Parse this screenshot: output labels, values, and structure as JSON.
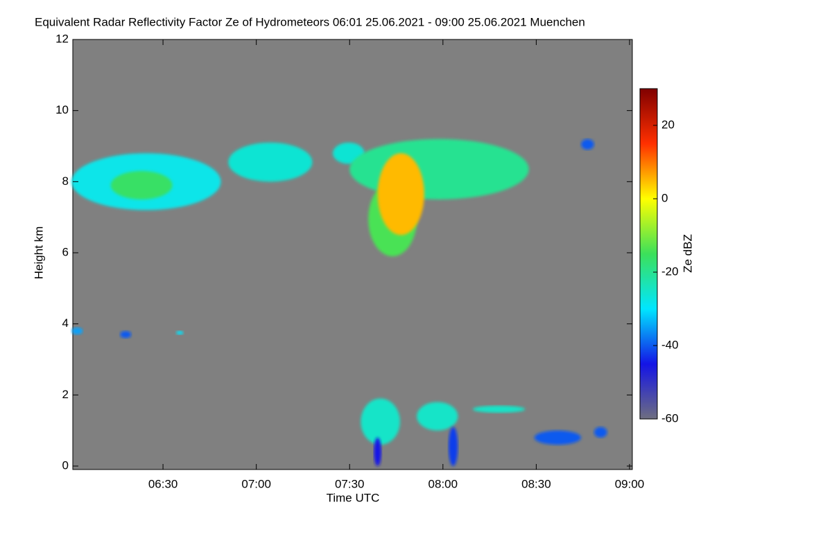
{
  "chart_data": {
    "type": "heatmap",
    "title": "Equivalent Radar Reflectivity Factor Ze of Hydrometeors   06:01 25.06.2021 - 09:00 25.06.2021 Muenchen",
    "xlabel": "Time UTC",
    "ylabel": "Height km",
    "colorbar_label": "Ze dBZ",
    "background": "#808080",
    "xlim": [
      6.0167,
      9.0
    ],
    "xticks": [
      {
        "value": 6.5,
        "label": "06:30"
      },
      {
        "value": 7.0,
        "label": "07:00"
      },
      {
        "value": 7.5,
        "label": "07:30"
      },
      {
        "value": 8.0,
        "label": "08:00"
      },
      {
        "value": 8.5,
        "label": "08:30"
      },
      {
        "value": 9.0,
        "label": "09:00"
      }
    ],
    "ylim": [
      0,
      12
    ],
    "yticks": [
      0,
      2,
      4,
      6,
      8,
      10,
      12
    ],
    "zlim": [
      -60,
      30
    ],
    "zticks": [
      -60,
      -40,
      -20,
      0,
      20
    ],
    "colormap": [
      "#6e6e80",
      "#1414e6",
      "#00e6ff",
      "#3ce05a",
      "#ffff00",
      "#ff3000",
      "#800000"
    ],
    "echoes": [
      {
        "x": [
          6.01,
          6.81
        ],
        "y": [
          7.2,
          8.8
        ],
        "value": -28
      },
      {
        "x": [
          6.22,
          6.55
        ],
        "y": [
          7.5,
          8.3
        ],
        "value": -16
      },
      {
        "x": [
          6.85,
          7.3
        ],
        "y": [
          8.0,
          9.1
        ],
        "value": -26
      },
      {
        "x": [
          7.41,
          7.58
        ],
        "y": [
          8.5,
          9.1
        ],
        "value": -26
      },
      {
        "x": [
          7.5,
          8.46
        ],
        "y": [
          7.5,
          9.2
        ],
        "value": -20
      },
      {
        "x": [
          7.6,
          7.86
        ],
        "y": [
          5.9,
          8.0
        ],
        "value": -14
      },
      {
        "x": [
          7.65,
          7.9
        ],
        "y": [
          6.5,
          8.8
        ],
        "value": 5
      },
      {
        "x": [
          8.74,
          8.81
        ],
        "y": [
          8.9,
          9.2
        ],
        "value": -40
      },
      {
        "x": [
          6.01,
          6.07
        ],
        "y": [
          3.7,
          3.9
        ],
        "value": -35
      },
      {
        "x": [
          6.27,
          6.33
        ],
        "y": [
          3.6,
          3.8
        ],
        "value": -40
      },
      {
        "x": [
          6.57,
          6.61
        ],
        "y": [
          3.7,
          3.8
        ],
        "value": -30
      },
      {
        "x": [
          7.56,
          7.77
        ],
        "y": [
          0.6,
          1.9
        ],
        "value": -25
      },
      {
        "x": [
          7.63,
          7.67
        ],
        "y": [
          0.0,
          0.8
        ],
        "value": -45
      },
      {
        "x": [
          7.86,
          8.08
        ],
        "y": [
          1.0,
          1.8
        ],
        "value": -25
      },
      {
        "x": [
          8.03,
          8.08
        ],
        "y": [
          0.0,
          1.1
        ],
        "value": -42
      },
      {
        "x": [
          8.16,
          8.44
        ],
        "y": [
          1.5,
          1.7
        ],
        "value": -25
      },
      {
        "x": [
          8.49,
          8.74
        ],
        "y": [
          0.6,
          1.0
        ],
        "value": -40
      },
      {
        "x": [
          8.81,
          8.88
        ],
        "y": [
          0.8,
          1.1
        ],
        "value": -40
      }
    ]
  }
}
